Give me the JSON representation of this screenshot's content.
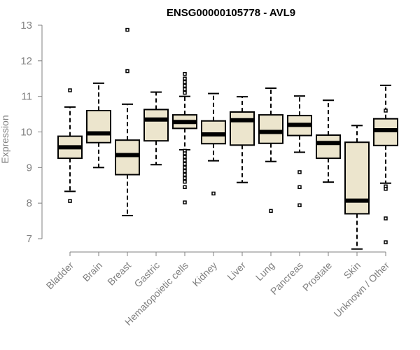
{
  "chart_data": {
    "type": "boxplot",
    "title": "ENSG00000105778 - AVL9",
    "xlabel": "",
    "ylabel": "Expression",
    "ylim": [
      6.7,
      13.0
    ],
    "yticks": [
      7,
      8,
      9,
      10,
      11,
      12,
      13
    ],
    "box_fill": "#ece5cd",
    "categories": [
      "Bladder",
      "Brain",
      "Breast",
      "Gastric",
      "Hematopoietic cells",
      "Kidney",
      "Liver",
      "Lung",
      "Pancreas",
      "Prostate",
      "Skin",
      "Unknown / Other"
    ],
    "boxes": [
      {
        "category": "Bladder",
        "whisker_low": 8.33,
        "q1": 9.26,
        "median": 9.57,
        "q3": 9.88,
        "whisker_high": 10.7,
        "outliers": [
          11.17,
          8.06
        ]
      },
      {
        "category": "Brain",
        "whisker_low": 9.0,
        "q1": 9.7,
        "median": 9.96,
        "q3": 10.6,
        "whisker_high": 11.37,
        "outliers": []
      },
      {
        "category": "Breast",
        "whisker_low": 7.65,
        "q1": 8.8,
        "median": 9.35,
        "q3": 9.77,
        "whisker_high": 10.78,
        "outliers": [
          12.87,
          11.71
        ]
      },
      {
        "category": "Gastric",
        "whisker_low": 9.08,
        "q1": 9.75,
        "median": 10.35,
        "q3": 10.63,
        "whisker_high": 11.12,
        "outliers": []
      },
      {
        "category": "Hematopoietic cells",
        "whisker_low": 9.5,
        "q1": 10.1,
        "median": 10.28,
        "q3": 10.48,
        "whisker_high": 11.0,
        "outliers": [
          11.63,
          11.5,
          11.4,
          11.3,
          11.2,
          11.1,
          9.47,
          9.4,
          9.3,
          9.2,
          9.1,
          9.0,
          8.9,
          8.8,
          8.7,
          8.6,
          8.45,
          8.02
        ]
      },
      {
        "category": "Kidney",
        "whisker_low": 9.19,
        "q1": 9.67,
        "median": 9.93,
        "q3": 10.31,
        "whisker_high": 11.08,
        "outliers": [
          8.27
        ]
      },
      {
        "category": "Liver",
        "whisker_low": 8.58,
        "q1": 9.63,
        "median": 10.33,
        "q3": 10.56,
        "whisker_high": 10.99,
        "outliers": []
      },
      {
        "category": "Lung",
        "whisker_low": 9.17,
        "q1": 9.68,
        "median": 10.0,
        "q3": 10.48,
        "whisker_high": 11.23,
        "outliers": [
          7.78
        ]
      },
      {
        "category": "Pancreas",
        "whisker_low": 9.43,
        "q1": 9.9,
        "median": 10.2,
        "q3": 10.46,
        "whisker_high": 11.01,
        "outliers": [
          8.87,
          8.45,
          7.94
        ]
      },
      {
        "category": "Prostate",
        "whisker_low": 8.59,
        "q1": 9.26,
        "median": 9.69,
        "q3": 9.91,
        "whisker_high": 10.89,
        "outliers": []
      },
      {
        "category": "Skin",
        "whisker_low": 6.71,
        "q1": 7.7,
        "median": 8.07,
        "q3": 9.71,
        "whisker_high": 10.18,
        "outliers": []
      },
      {
        "category": "Unknown / Other",
        "whisker_low": 8.56,
        "q1": 9.62,
        "median": 10.05,
        "q3": 10.37,
        "whisker_high": 11.31,
        "outliers": [
          10.6,
          8.47,
          8.4,
          7.57,
          6.9
        ]
      }
    ]
  }
}
